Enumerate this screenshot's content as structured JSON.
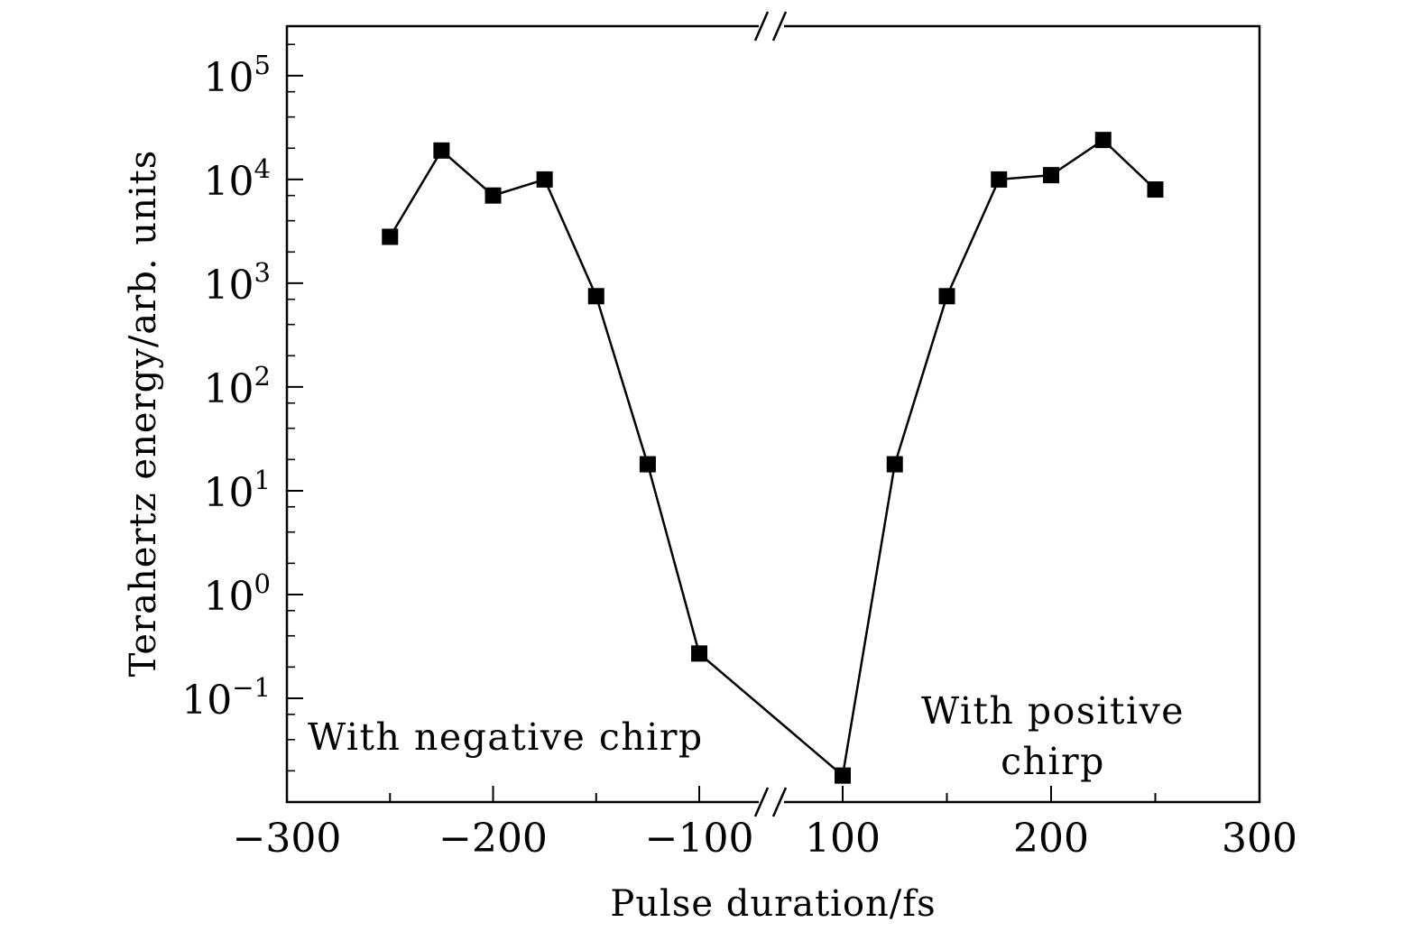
{
  "chart_data": {
    "type": "line",
    "title": "",
    "xlabel": "Pulse duration/fs",
    "ylabel": "Terahertz energy/arb. units",
    "y_scale": "log",
    "ylim": [
      0.01,
      300000
    ],
    "x_axis_break": true,
    "x_segments": [
      {
        "name": "negative",
        "range": [
          -300,
          -75
        ]
      },
      {
        "name": "positive",
        "range": [
          100,
          300
        ]
      }
    ],
    "x_ticks": [
      {
        "value": -300,
        "label": "−300"
      },
      {
        "value": -200,
        "label": "−200"
      },
      {
        "value": -100,
        "label": "−100"
      },
      {
        "value": 100,
        "label": "100"
      },
      {
        "value": 200,
        "label": "200"
      },
      {
        "value": 300,
        "label": "300"
      }
    ],
    "y_ticks": [
      {
        "value": 100000,
        "base": "10",
        "exp": "5"
      },
      {
        "value": 10000,
        "base": "10",
        "exp": "4"
      },
      {
        "value": 1000,
        "base": "10",
        "exp": "3"
      },
      {
        "value": 100,
        "base": "10",
        "exp": "2"
      },
      {
        "value": 10,
        "base": "10",
        "exp": "1"
      },
      {
        "value": 1,
        "base": "10",
        "exp": "0"
      },
      {
        "value": 0.1,
        "base": "10",
        "exp": "−1"
      }
    ],
    "series": [
      {
        "name": "Terahertz energy",
        "marker": "square",
        "points": [
          {
            "x": -250,
            "y": 2800
          },
          {
            "x": -225,
            "y": 19000
          },
          {
            "x": -200,
            "y": 7000
          },
          {
            "x": -175,
            "y": 10000
          },
          {
            "x": -150,
            "y": 750
          },
          {
            "x": -125,
            "y": 18
          },
          {
            "x": -100,
            "y": 0.27
          },
          {
            "x": 100,
            "y": 0.018
          },
          {
            "x": 125,
            "y": 18
          },
          {
            "x": 150,
            "y": 750
          },
          {
            "x": 175,
            "y": 10000
          },
          {
            "x": 200,
            "y": 11000
          },
          {
            "x": 225,
            "y": 24000
          },
          {
            "x": 250,
            "y": 8000
          }
        ]
      }
    ],
    "annotations": {
      "negative": "With negative chirp",
      "positive_line1": "With positive",
      "positive_line2": "chirp"
    }
  }
}
